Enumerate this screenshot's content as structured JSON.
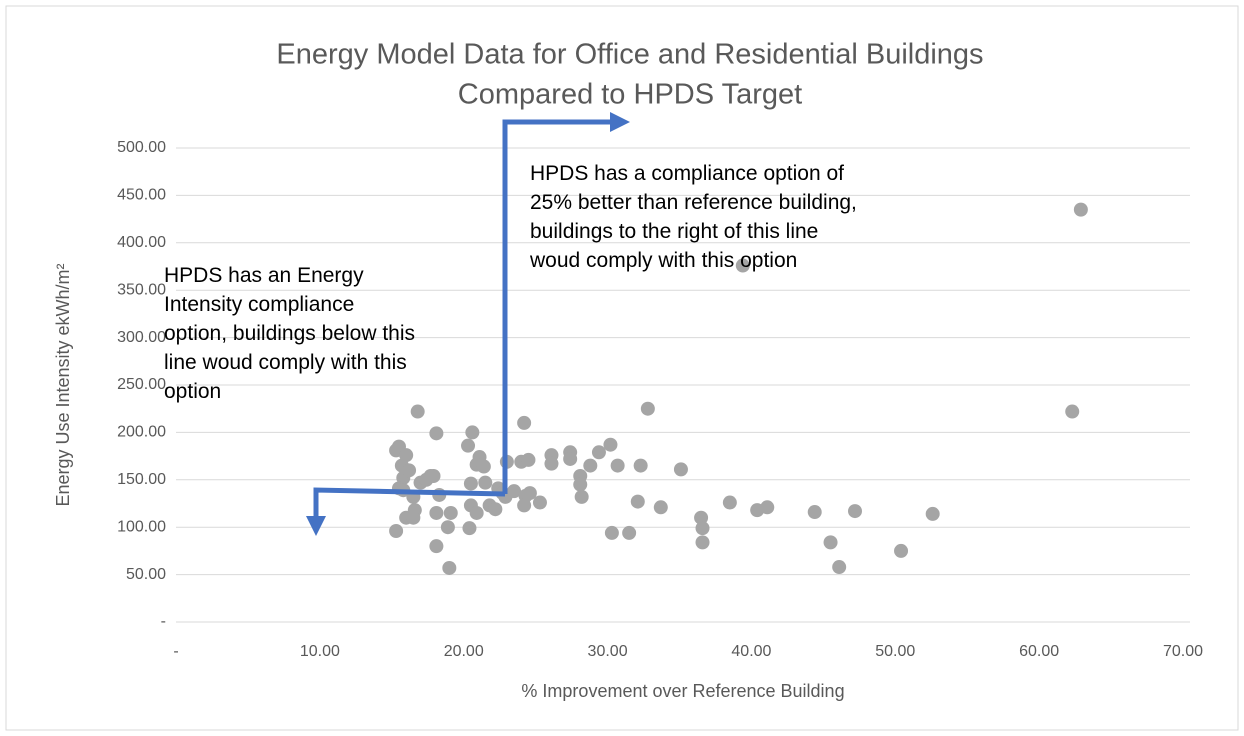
{
  "chart_data": {
    "type": "scatter",
    "title": [
      "Energy Model Data for Office and Residential Buildings",
      "Compared to HPDS Target"
    ],
    "x_label": "% Improvement over Reference Building",
    "y_label": "Energy Use Intensity ekWh/m²",
    "annotations": [
      [
        "HPDS has a compliance option of",
        "25% better than reference building,",
        "buildings to the right of this line",
        "woud comply with this option"
      ],
      [
        "HPDS has an Energy",
        "Intensity compliance",
        "option, buildings below this",
        "line woud comply with this",
        "option"
      ]
    ],
    "color": "#a5a5a5",
    "grid": true,
    "xlim": [
      0,
      70
    ],
    "ylim": [
      0,
      500
    ],
    "xticks": [
      {
        "value": 0,
        "label": "-"
      },
      {
        "value": 10,
        "label": "10.00"
      },
      {
        "value": 20,
        "label": "20.00"
      },
      {
        "value": 30,
        "label": "30.00"
      },
      {
        "value": 40,
        "label": "40.00"
      },
      {
        "value": 50,
        "label": "50.00"
      },
      {
        "value": 60,
        "label": "60.00"
      },
      {
        "value": 70,
        "label": "70.00"
      }
    ],
    "yticks": [
      {
        "value": 0,
        "label": "-"
      },
      {
        "value": 50,
        "label": "50.00"
      },
      {
        "value": 100,
        "label": "100.00"
      },
      {
        "value": 150,
        "label": "150.00"
      },
      {
        "value": 200,
        "label": "200.00"
      },
      {
        "value": 250,
        "label": "250.00"
      },
      {
        "value": 300,
        "label": "300.00"
      },
      {
        "value": 350,
        "label": "350.00"
      },
      {
        "value": 400,
        "label": "400.00"
      },
      {
        "value": 450,
        "label": "450.00"
      },
      {
        "value": 500,
        "label": "500.00"
      }
    ],
    "x": [
      15.3,
      15.3,
      15.5,
      15.7,
      15.8,
      15.5,
      16.0,
      16.2,
      16.5,
      16.6,
      16.5,
      16.8,
      15.8,
      16.0,
      17.0,
      17.4,
      17.7,
      17.9,
      18.1,
      18.1,
      18.3,
      18.1,
      18.9,
      19.0,
      19.1,
      20.3,
      20.6,
      20.5,
      20.5,
      20.4,
      20.9,
      21.1,
      20.9,
      21.4,
      21.5,
      21.8,
      22.2,
      22.4,
      22.7,
      22.9,
      23.0,
      23.5,
      24.0,
      24.2,
      24.5,
      24.3,
      24.6,
      24.2,
      25.3,
      26.1,
      26.1,
      27.4,
      27.4,
      28.1,
      28.1,
      28.2,
      28.8,
      29.4,
      30.2,
      30.3,
      30.7,
      31.5,
      32.1,
      32.3,
      32.8,
      33.7,
      35.1,
      36.5,
      36.6,
      36.6,
      38.5,
      39.4,
      40.4,
      41.1,
      44.4,
      45.5,
      46.1,
      47.2,
      50.4,
      52.6,
      62.3,
      62.9
    ],
    "values": [
      96,
      181,
      185,
      165,
      152,
      141,
      110,
      160,
      132,
      118,
      110,
      222,
      139,
      176,
      147,
      150,
      154,
      154,
      199,
      80,
      134,
      115,
      100,
      57,
      115,
      186,
      200,
      146,
      123,
      99,
      115,
      174,
      166,
      164,
      147,
      123,
      119,
      141,
      136,
      132,
      169,
      138,
      169,
      210,
      171,
      133,
      136,
      123,
      126,
      176,
      167,
      179,
      172,
      154,
      145,
      132,
      165,
      179,
      187,
      94,
      165,
      94,
      127,
      165,
      225,
      121,
      161,
      110,
      99,
      84,
      126,
      376,
      118,
      121,
      116,
      84,
      58,
      117,
      75,
      114,
      222,
      435
    ]
  }
}
